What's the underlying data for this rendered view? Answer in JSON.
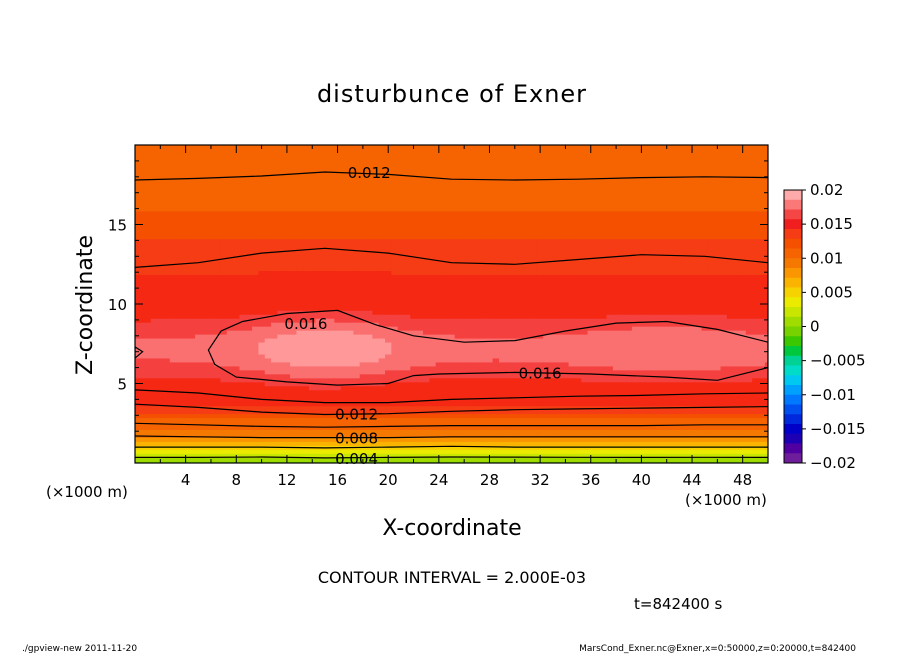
{
  "chart_data": {
    "type": "heatmap",
    "title": "disturbunce of Exner",
    "xlabel": "X-coordinate",
    "ylabel": "Z-coordinate",
    "x_unit": "(×1000 m)",
    "x_ticks": [
      "4",
      "8",
      "12",
      "16",
      "20",
      "24",
      "28",
      "32",
      "36",
      "40",
      "44",
      "48"
    ],
    "y_ticks": [
      "5",
      "10",
      "15"
    ],
    "xlim": [
      0,
      50
    ],
    "ylim": [
      0,
      20
    ],
    "contour_interval_text": "CONTOUR INTERVAL = 2.000E-03",
    "time_text": "t=842400 s",
    "contour_labels": [
      {
        "text": "0.012",
        "x": 18.5,
        "z": 18.3
      },
      {
        "text": "0.016",
        "x": 13.5,
        "z": 8.8
      },
      {
        "text": "0.016",
        "x": 32,
        "z": 5.7
      },
      {
        "text": "0.012",
        "x": 17.5,
        "z": 3.1
      },
      {
        "text": "0.008",
        "x": 17.5,
        "z": 1.6
      },
      {
        "text": "0.004",
        "x": 17.5,
        "z": 0.3
      }
    ],
    "contours": [
      {
        "level": 0.004,
        "z": [
          0.35,
          0.35,
          0.38,
          0.32,
          0.35,
          0.38,
          0.37,
          0.36,
          0.35,
          0.36,
          0.35
        ]
      },
      {
        "level": 0.006,
        "z": [
          1.0,
          1.0,
          1.0,
          0.95,
          1.0,
          1.05,
          1.0,
          1.0,
          1.0,
          1.0,
          1.0
        ]
      },
      {
        "level": 0.008,
        "z": [
          1.7,
          1.65,
          1.6,
          1.6,
          1.6,
          1.65,
          1.65,
          1.65,
          1.65,
          1.65,
          1.65
        ]
      },
      {
        "level": 0.01,
        "z": [
          2.5,
          2.4,
          2.3,
          2.25,
          2.3,
          2.35,
          2.35,
          2.35,
          2.35,
          2.4,
          2.4
        ]
      },
      {
        "level": 0.012,
        "z": [
          3.7,
          3.5,
          3.2,
          3.05,
          3.1,
          3.25,
          3.35,
          3.4,
          3.45,
          3.5,
          3.55
        ]
      },
      {
        "level": 0.014,
        "z": [
          4.6,
          4.4,
          4.0,
          3.8,
          3.8,
          4.0,
          4.1,
          4.2,
          4.25,
          4.35,
          4.4
        ]
      },
      {
        "level": 0.014,
        "z": [
          12.3,
          12.6,
          13.2,
          13.5,
          13.2,
          12.6,
          12.5,
          12.8,
          13.1,
          13.0,
          12.6
        ]
      },
      {
        "level": 0.012,
        "z": [
          17.8,
          17.9,
          18.05,
          18.3,
          18.15,
          17.85,
          17.8,
          17.85,
          17.95,
          18.0,
          17.95
        ]
      }
    ],
    "closed_contours": [
      {
        "level": 0.016,
        "points": [
          [
            0,
            7.3
          ],
          [
            0.6,
            7.0
          ],
          [
            0,
            6.6
          ]
        ]
      },
      {
        "level": 0.016,
        "points": [
          [
            5.8,
            7.1
          ],
          [
            6.8,
            8.3
          ],
          [
            8.5,
            8.9
          ],
          [
            12,
            9.4
          ],
          [
            16,
            9.6
          ],
          [
            19,
            8.7
          ],
          [
            22,
            8.0
          ],
          [
            26,
            7.6
          ],
          [
            30,
            7.7
          ],
          [
            34,
            8.3
          ],
          [
            38,
            8.8
          ],
          [
            42,
            8.9
          ],
          [
            46,
            8.4
          ],
          [
            50,
            7.6
          ],
          [
            50,
            6.0
          ],
          [
            46,
            5.2
          ],
          [
            42,
            5.4
          ],
          [
            36,
            5.6
          ],
          [
            30,
            5.7
          ],
          [
            24,
            5.6
          ],
          [
            22,
            5.5
          ],
          [
            20,
            5.0
          ],
          [
            16,
            4.9
          ],
          [
            12,
            5.1
          ],
          [
            8,
            5.4
          ],
          [
            6.3,
            6.2
          ]
        ]
      }
    ],
    "fill_levels": [
      {
        "level": 0.0,
        "color": "#60c800"
      },
      {
        "level": 0.002,
        "color": "#78d200"
      },
      {
        "level": 0.003,
        "color": "#a0dc00"
      },
      {
        "level": 0.004,
        "color": "#c8e600"
      },
      {
        "level": 0.005,
        "color": "#ebeb00"
      },
      {
        "level": 0.006,
        "color": "#f5d200"
      },
      {
        "level": 0.007,
        "color": "#fab400"
      },
      {
        "level": 0.008,
        "color": "#fa9600"
      },
      {
        "level": 0.009,
        "color": "#f57800"
      },
      {
        "level": 0.01,
        "color": "#f56400"
      },
      {
        "level": 0.012,
        "color": "#f55000"
      },
      {
        "level": 0.013,
        "color": "#f53c14"
      },
      {
        "level": 0.014,
        "color": "#f52814"
      },
      {
        "level": 0.016,
        "color": "#f54040"
      },
      {
        "level": 0.017,
        "color": "#fa7070"
      },
      {
        "level": 0.018,
        "color": "#ff9898"
      }
    ],
    "colorbar": {
      "ticks": [
        "0.02",
        "0.015",
        "0.01",
        "0.005",
        "0",
        "−0.005",
        "−0.01",
        "−0.015",
        "−0.02"
      ],
      "colors": [
        "#ffaaaa",
        "#fa7878",
        "#f54646",
        "#f01e1e",
        "#f53c14",
        "#f55000",
        "#f56400",
        "#f57800",
        "#fa9600",
        "#fab400",
        "#f5d200",
        "#ebeb00",
        "#c8e600",
        "#a0dc00",
        "#78d200",
        "#3cc800",
        "#00c83c",
        "#00d296",
        "#00dcc8",
        "#00c8f0",
        "#00a0ff",
        "#0078ff",
        "#0050f0",
        "#0028dc",
        "#0000c8",
        "#1e00b4",
        "#5000a0",
        "#6e1e9b"
      ]
    }
  },
  "footer": {
    "left": "./gpview-new   2011-11-20",
    "right": "MarsCond_Exner.nc@Exner,x=0:50000,z=0:20000,t=842400"
  }
}
